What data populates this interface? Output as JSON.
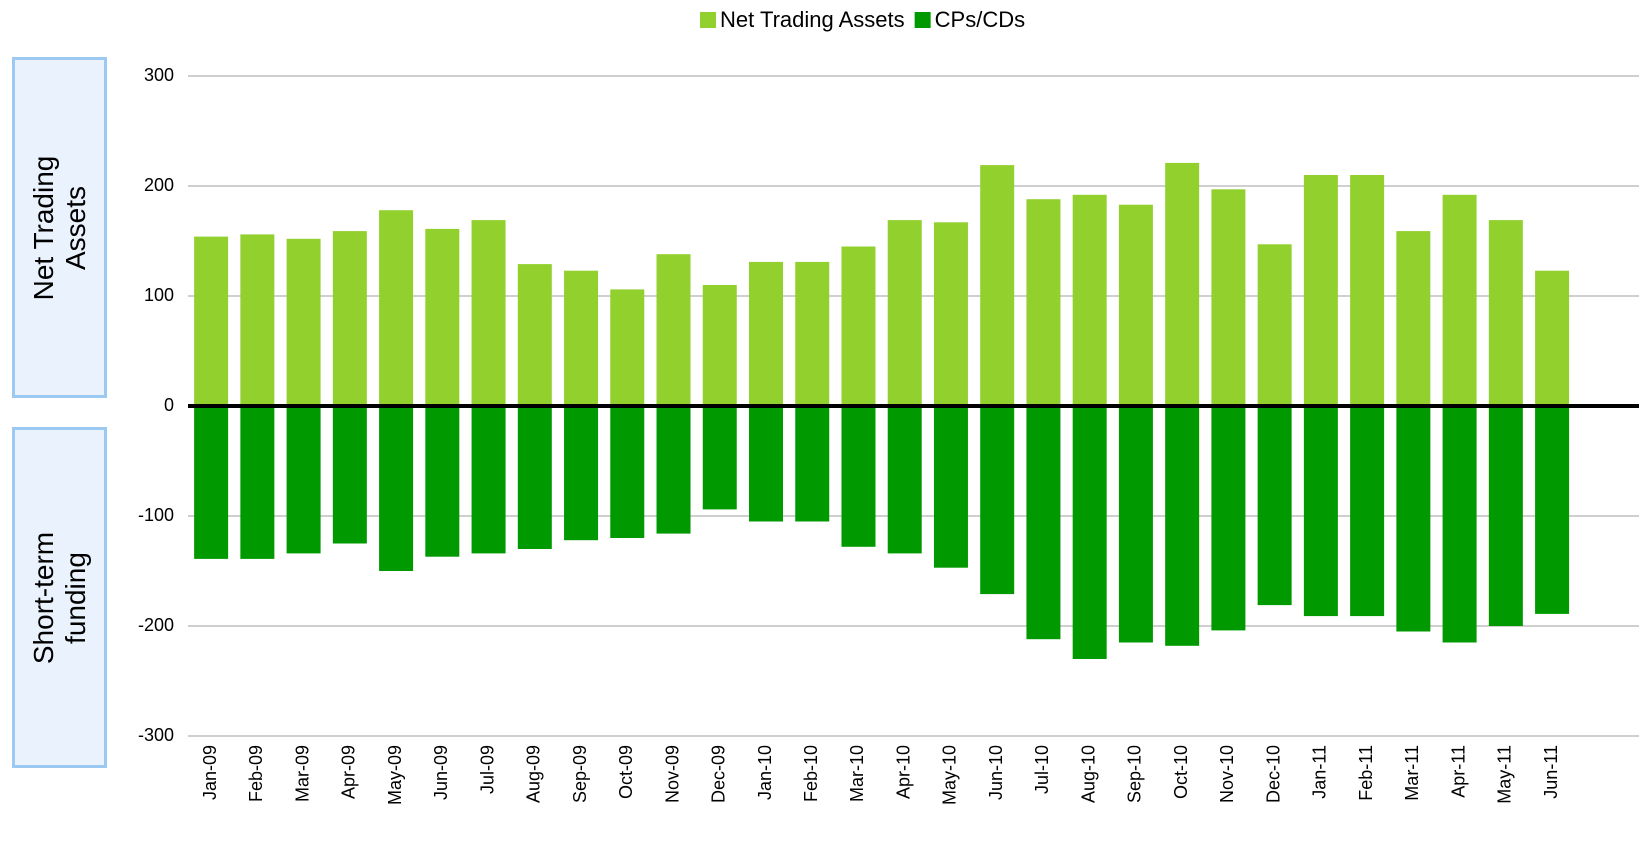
{
  "chart_data": {
    "type": "bar",
    "annotations": [
      "Net Trading Assets",
      "Short-term funding"
    ],
    "categories": [
      "Jan-09",
      "Feb-09",
      "Mar-09",
      "Apr-09",
      "May-09",
      "Jun-09",
      "Jul-09",
      "Aug-09",
      "Sep-09",
      "Oct-09",
      "Nov-09",
      "Dec-09",
      "Jan-10",
      "Feb-10",
      "Mar-10",
      "Apr-10",
      "May-10",
      "Jun-10",
      "Jul-10",
      "Aug-10",
      "Sep-10",
      "Oct-10",
      "Nov-10",
      "Dec-10",
      "Jan-11",
      "Feb-11",
      "Mar-11",
      "Apr-11",
      "May-11",
      "Jun-11"
    ],
    "series": [
      {
        "name": "Net Trading Assets",
        "color": "#92d02e",
        "values": [
          154,
          156,
          152,
          159,
          178,
          161,
          169,
          129,
          123,
          106,
          138,
          110,
          131,
          131,
          145,
          169,
          167,
          219,
          188,
          192,
          183,
          221,
          197,
          147,
          210,
          210,
          159,
          192,
          169,
          123
        ]
      },
      {
        "name": "CPs/CDs",
        "color": "#009a00",
        "values": [
          -139,
          -139,
          -134,
          -125,
          -150,
          -137,
          -134,
          -130,
          -122,
          -120,
          -116,
          -94,
          -105,
          -105,
          -128,
          -134,
          -147,
          -171,
          -212,
          -230,
          -215,
          -218,
          -204,
          -181,
          -191,
          -191,
          -205,
          -215,
          -200,
          -189
        ]
      }
    ],
    "ylim": [
      -300,
      300
    ],
    "yticks": [
      -300,
      -200,
      -100,
      0,
      100,
      200,
      300
    ],
    "grid": true,
    "legend": "top"
  }
}
